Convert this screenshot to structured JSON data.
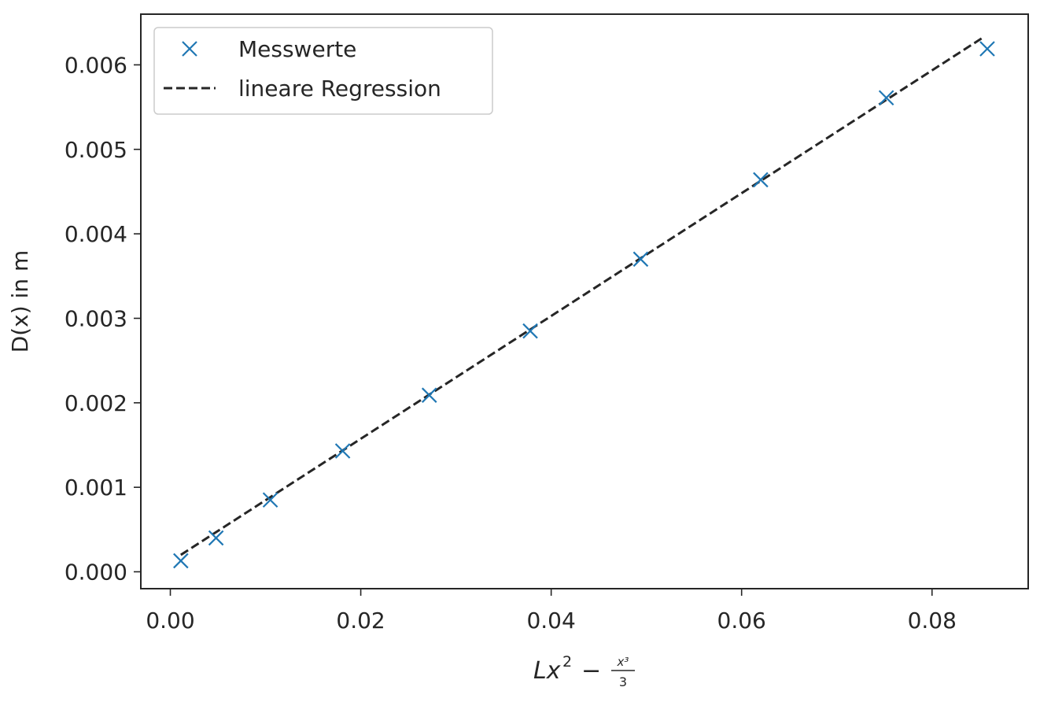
{
  "chart_data": {
    "type": "scatter",
    "title": "",
    "ylabel": "D(x) in m",
    "xlabel": {
      "base": "Lx",
      "exp": "2",
      "op": "−",
      "num": "x³",
      "den": "3"
    },
    "xlim": [
      -0.0031,
      0.0901
    ],
    "ylim": [
      -0.0002,
      0.0066
    ],
    "grid": false,
    "legend_position": "top-left",
    "x_ticks": [
      {
        "value": 0.0,
        "label": "0.00"
      },
      {
        "value": 0.02,
        "label": "0.02"
      },
      {
        "value": 0.04,
        "label": "0.04"
      },
      {
        "value": 0.06,
        "label": "0.06"
      },
      {
        "value": 0.08,
        "label": "0.08"
      }
    ],
    "y_ticks": [
      {
        "value": 0.0,
        "label": "0.000"
      },
      {
        "value": 0.001,
        "label": "0.001"
      },
      {
        "value": 0.002,
        "label": "0.002"
      },
      {
        "value": 0.003,
        "label": "0.003"
      },
      {
        "value": 0.004,
        "label": "0.004"
      },
      {
        "value": 0.005,
        "label": "0.005"
      },
      {
        "value": 0.006,
        "label": "0.006"
      }
    ],
    "series": [
      {
        "name": "Messwerte",
        "type": "scatter",
        "marker": "x",
        "color": "#1f77b4",
        "x": [
          0.0011,
          0.0048,
          0.0105,
          0.0181,
          0.0272,
          0.0378,
          0.0494,
          0.062,
          0.0752,
          0.0858
        ],
        "y": [
          0.00013,
          0.0004,
          0.00085,
          0.00143,
          0.00209,
          0.00285,
          0.0037,
          0.00464,
          0.00561,
          0.00619
        ]
      },
      {
        "name": "lineare Regression",
        "type": "line",
        "dash": "dashed",
        "color": "#262626",
        "x": [
          0.0011,
          0.0853
        ],
        "y": [
          0.0002,
          0.00632
        ]
      }
    ]
  }
}
